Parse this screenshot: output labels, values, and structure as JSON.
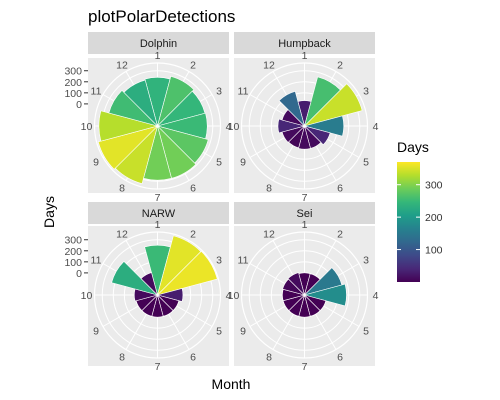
{
  "chart_data": {
    "type": "bar",
    "coord": "polar",
    "title": "plotPolarDetections",
    "xlabel": "Month",
    "ylabel": "Days",
    "months": [
      "1",
      "2",
      "3",
      "4",
      "5",
      "6",
      "7",
      "8",
      "9",
      "10",
      "11",
      "12"
    ],
    "radial_ticks": [
      0,
      100,
      200,
      300
    ],
    "radial_range": [
      -200,
      370
    ],
    "facets": [
      {
        "name": "Dolphin",
        "values": [
          240,
          265,
          245,
          250,
          275,
          290,
          290,
          340,
          355,
          330,
          255,
          230
        ]
      },
      {
        "name": "Humpback",
        "values": [
          30,
          260,
          340,
          155,
          40,
          10,
          10,
          5,
          10,
          40,
          10,
          125
        ]
      },
      {
        "name": "NARW",
        "values": [
          250,
          355,
          360,
          30,
          0,
          0,
          0,
          0,
          0,
          10,
          230,
          10
        ]
      },
      {
        "name": "Sei",
        "values": [
          0,
          0,
          150,
          180,
          0,
          0,
          0,
          0,
          0,
          0,
          5,
          10
        ]
      }
    ],
    "legend": {
      "title": "Days",
      "position": "right",
      "ticks": [
        100,
        200,
        300
      ],
      "range": [
        0,
        370
      ],
      "colors": [
        "#440154",
        "#482878",
        "#3E4A89",
        "#31688E",
        "#26828E",
        "#1F9E89",
        "#35B779",
        "#6DCD59",
        "#B4DE2C",
        "#FDE725"
      ]
    },
    "style": {
      "panel_bg": "#ebebeb",
      "strip_bg": "#d9d9d9",
      "grid_color": "#ffffff",
      "grid": true
    }
  }
}
